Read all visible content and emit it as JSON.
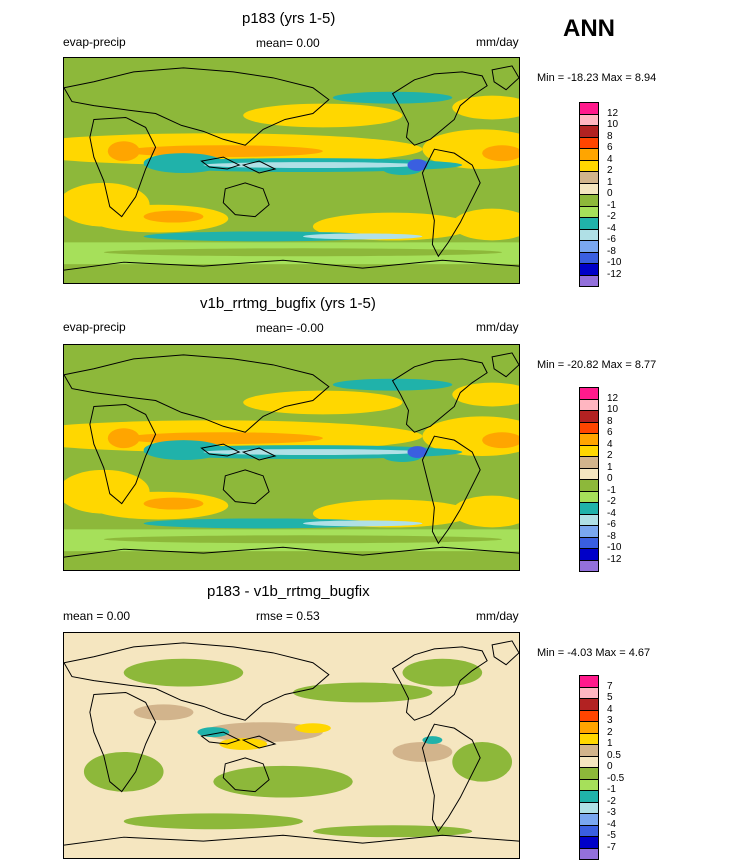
{
  "season": "ANN",
  "panels": [
    {
      "title": "p183 (yrs 1-5)",
      "left_label": "evap-precip",
      "center_label": "mean=  0.00",
      "units": "mm/day",
      "minmax": "Min = -18.23 Max =   8.94",
      "map_style": "full",
      "colorbar": {
        "labels": [
          "12",
          "10",
          "8",
          "6",
          "4",
          "2",
          "1",
          "0",
          "-1",
          "-2",
          "-4",
          "-6",
          "-8",
          "-10",
          "-12"
        ],
        "colors": [
          "#ff1a8c",
          "#ffb6c1",
          "#b22222",
          "#ff4500",
          "#ffa500",
          "#ffd700",
          "#d2b48c",
          "#f5e6c0",
          "#8db83a",
          "#a6e05a",
          "#20b2aa",
          "#b0e0e6",
          "#7aa7f0",
          "#3a5fe0",
          "#0000c8",
          "#9370db"
        ]
      }
    },
    {
      "title": "v1b_rrtmg_bugfix (yrs 1-5)",
      "left_label": "evap-precip",
      "center_label": "mean=  -0.00",
      "units": "mm/day",
      "minmax": "Min = -20.82 Max =   8.77",
      "map_style": "full",
      "colorbar": {
        "labels": [
          "12",
          "10",
          "8",
          "6",
          "4",
          "2",
          "1",
          "0",
          "-1",
          "-2",
          "-4",
          "-6",
          "-8",
          "-10",
          "-12"
        ],
        "colors": [
          "#ff1a8c",
          "#ffb6c1",
          "#b22222",
          "#ff4500",
          "#ffa500",
          "#ffd700",
          "#d2b48c",
          "#f5e6c0",
          "#8db83a",
          "#a6e05a",
          "#20b2aa",
          "#b0e0e6",
          "#7aa7f0",
          "#3a5fe0",
          "#0000c8",
          "#9370db"
        ]
      }
    },
    {
      "title": "p183 - v1b_rrtmg_bugfix",
      "left_label": "mean =   0.00",
      "center_label": "rmse =   0.53",
      "units": "mm/day",
      "minmax": "Min =  -4.03 Max =   4.67",
      "map_style": "diff",
      "colorbar": {
        "labels": [
          "7",
          "5",
          "4",
          "3",
          "2",
          "1",
          "0.5",
          "0",
          "-0.5",
          "-1",
          "-2",
          "-3",
          "-4",
          "-5",
          "-7"
        ],
        "colors": [
          "#ff1a8c",
          "#ffb6c1",
          "#b22222",
          "#ff4500",
          "#ffa500",
          "#ffd700",
          "#d2b48c",
          "#f5e6c0",
          "#8db83a",
          "#a6e05a",
          "#20b2aa",
          "#b0e0e6",
          "#7aa7f0",
          "#3a5fe0",
          "#0000c8",
          "#9370db"
        ]
      }
    }
  ],
  "chart_data": {
    "type": "heatmap",
    "variable": "evap-precip",
    "units": "mm/day",
    "season": "ANN",
    "maps": [
      {
        "title": "p183 (yrs 1-5)",
        "mean": 0.0,
        "min": -18.23,
        "max": 8.94,
        "levels": [
          -12,
          -10,
          -8,
          -6,
          -4,
          -2,
          -1,
          0,
          1,
          2,
          4,
          6,
          8,
          10,
          12
        ]
      },
      {
        "title": "v1b_rrtmg_bugfix (yrs 1-5)",
        "mean": -0.0,
        "min": -20.82,
        "max": 8.77,
        "levels": [
          -12,
          -10,
          -8,
          -6,
          -4,
          -2,
          -1,
          0,
          1,
          2,
          4,
          6,
          8,
          10,
          12
        ]
      },
      {
        "title": "p183 - v1b_rrtmg_bugfix",
        "mean": 0.0,
        "rmse": 0.53,
        "min": -4.03,
        "max": 4.67,
        "levels": [
          -7,
          -5,
          -4,
          -3,
          -2,
          -1,
          -0.5,
          0,
          0.5,
          1,
          2,
          3,
          4,
          5,
          7
        ]
      }
    ]
  }
}
